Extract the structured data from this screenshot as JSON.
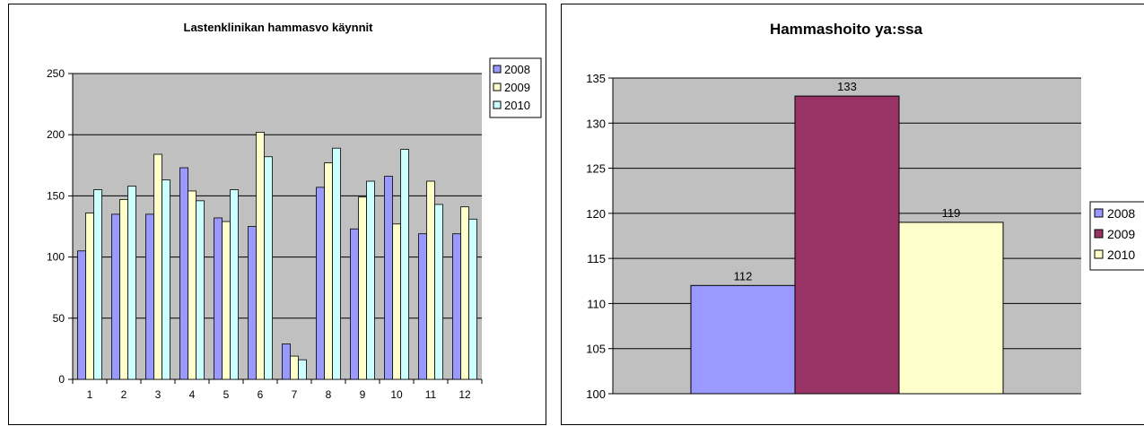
{
  "charts": {
    "left": {
      "title": "Lastenklinikan hammasvo käynnit",
      "legend": [
        "2008",
        "2009",
        "2010"
      ],
      "colors": {
        "plot_bg": "#c0c0c0",
        "2008": "#9999ff",
        "2009": "#ffffcc",
        "2010": "#ccffff"
      }
    },
    "right": {
      "title": "Hammashoito ya:ssa",
      "legend": [
        "2008",
        "2009",
        "2010"
      ],
      "colors": {
        "plot_bg": "#c0c0c0",
        "2008": "#9999ff",
        "2009": "#993366",
        "2010": "#ffffcc"
      }
    }
  },
  "chart_data": [
    {
      "type": "bar",
      "title": "Lastenklinikan hammasvo käynnit",
      "xlabel": "",
      "ylabel": "",
      "categories": [
        "1",
        "2",
        "3",
        "4",
        "5",
        "6",
        "7",
        "8",
        "9",
        "10",
        "11",
        "12"
      ],
      "series": [
        {
          "name": "2008",
          "values": [
            105,
            135,
            135,
            173,
            132,
            125,
            29,
            157,
            123,
            166,
            119,
            119
          ]
        },
        {
          "name": "2009",
          "values": [
            136,
            147,
            184,
            154,
            129,
            202,
            19,
            177,
            149,
            127,
            162,
            141
          ]
        },
        {
          "name": "2010",
          "values": [
            155,
            158,
            163,
            146,
            155,
            182,
            16,
            189,
            162,
            188,
            143,
            131
          ]
        }
      ],
      "ylim": [
        0,
        250
      ],
      "yticks": [
        0,
        50,
        100,
        150,
        200,
        250
      ],
      "grid": true,
      "legend_position": "right"
    },
    {
      "type": "bar",
      "title": "Hammashoito ya:ssa",
      "xlabel": "",
      "ylabel": "",
      "categories": [
        ""
      ],
      "series": [
        {
          "name": "2008",
          "values": [
            112
          ]
        },
        {
          "name": "2009",
          "values": [
            133
          ]
        },
        {
          "name": "2010",
          "values": [
            119
          ]
        }
      ],
      "data_labels": [
        "112",
        "133",
        "119"
      ],
      "ylim": [
        100,
        135
      ],
      "yticks": [
        100,
        105,
        110,
        115,
        120,
        125,
        130,
        135
      ],
      "grid": true,
      "legend_position": "right"
    }
  ]
}
